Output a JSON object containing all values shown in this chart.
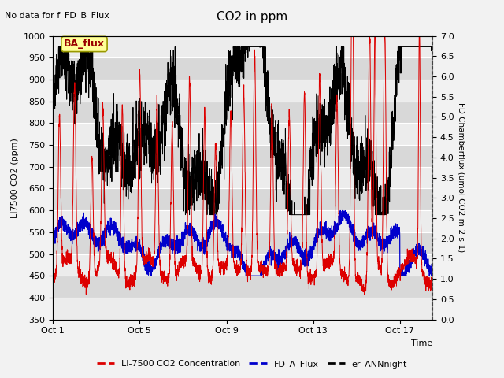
{
  "title": "CO2 in ppm",
  "top_left_text": "No data for f_FD_B_Flux",
  "xlabel": "Time",
  "ylabel_left": "LI7500 CO2 (ppm)",
  "ylabel_right": "FD Chamberflux (umol CO2 m-2 s-1)",
  "ylim_left": [
    350,
    1000
  ],
  "ylim_right": [
    0.0,
    7.0
  ],
  "xlim": [
    0,
    17.5
  ],
  "xtick_positions": [
    0,
    4,
    8,
    12,
    16
  ],
  "xtick_labels": [
    "Oct 1",
    "Oct 5",
    "Oct 9",
    "Oct 13",
    "Oct 17"
  ],
  "ytick_left": [
    350,
    400,
    450,
    500,
    550,
    600,
    650,
    700,
    750,
    800,
    850,
    900,
    950,
    1000
  ],
  "ytick_right": [
    0.0,
    0.5,
    1.0,
    1.5,
    2.0,
    2.5,
    3.0,
    3.5,
    4.0,
    4.5,
    5.0,
    5.5,
    6.0,
    6.5,
    7.0
  ],
  "legend_entries": [
    {
      "label": "LI-7500 CO2 Concentration",
      "color": "#dd0000",
      "lw": 1.2
    },
    {
      "label": "FD_A_Flux",
      "color": "#0000cc",
      "lw": 1.2
    },
    {
      "label": "er_ANNnight",
      "color": "#000000",
      "lw": 1.2
    }
  ],
  "ba_flux_box": {
    "text": "BA_flux",
    "facecolor": "#ffff99",
    "edgecolor": "#999900"
  },
  "fig_facecolor": "#f2f2f2",
  "plot_bg_color": "#e0e0e0",
  "white_band_color": "#ececec",
  "gray_band_color": "#d8d8d8",
  "seed": 42
}
